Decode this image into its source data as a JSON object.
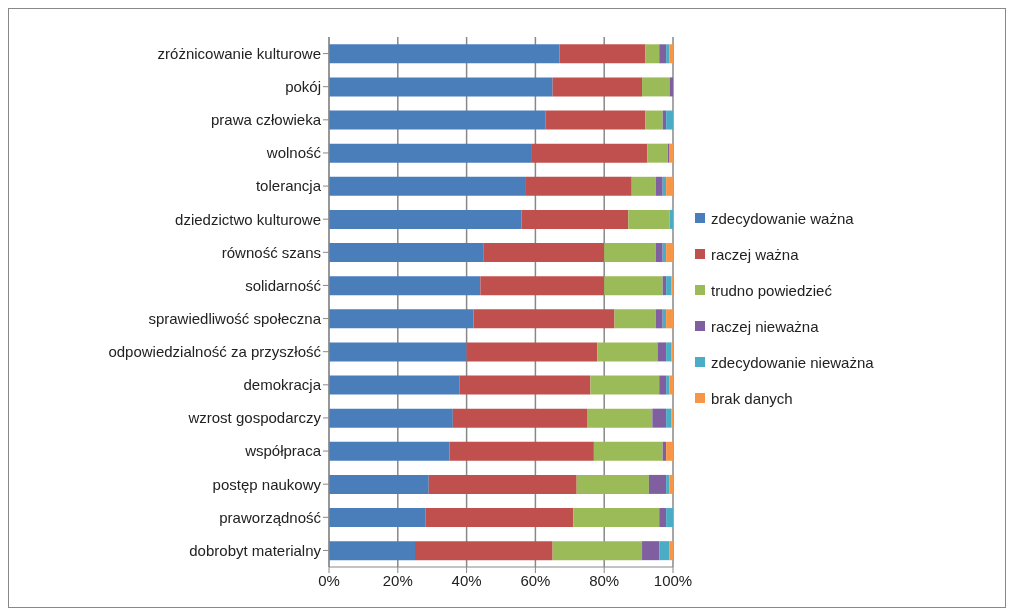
{
  "chart_data": {
    "type": "bar",
    "orientation": "horizontal",
    "stacked": true,
    "categories": [
      "zróżnicowanie kulturowe",
      "pokój",
      "prawa człowieka",
      "wolność",
      "tolerancja",
      "dziedzictwo kulturowe",
      "równość szans",
      "solidarność",
      "sprawiedliwość społeczna",
      "odpowiedzialność za przyszłość",
      "demokracja",
      "wzrost gospodarczy",
      "współpraca",
      "postęp naukowy",
      "praworządność",
      "dobrobyt materialny"
    ],
    "series": [
      {
        "name": "zdecydowanie ważna",
        "color": "#4a7ebb",
        "values": [
          67,
          65,
          63,
          59,
          57,
          56,
          45,
          44,
          42,
          40,
          38,
          36,
          35,
          29,
          28,
          25
        ]
      },
      {
        "name": "raczej ważna",
        "color": "#c0504d",
        "values": [
          25,
          26,
          29,
          33.5,
          31,
          31,
          35,
          36,
          41,
          38,
          38,
          39,
          42,
          43,
          43,
          40
        ]
      },
      {
        "name": "trudno powiedzieć",
        "color": "#9bbb59",
        "values": [
          4,
          8,
          5,
          6,
          7,
          12,
          15,
          17,
          12,
          17.5,
          20,
          19,
          20,
          21,
          25,
          26
        ]
      },
      {
        "name": "raczej nieważna",
        "color": "#7f5fa0",
        "values": [
          2,
          1,
          1,
          0.5,
          2,
          0,
          2,
          1,
          2,
          2.5,
          2,
          4,
          1,
          5,
          2,
          5
        ]
      },
      {
        "name": "zdecydowanie nieważna",
        "color": "#4bacc6",
        "values": [
          1,
          0,
          2,
          0,
          1,
          1,
          1,
          1.5,
          1,
          1.5,
          1,
          1.5,
          0,
          1,
          2,
          3
        ]
      },
      {
        "name": "brak danych",
        "color": "#f79646",
        "values": [
          1,
          0,
          0,
          1,
          2,
          0,
          2,
          0.5,
          2,
          0.5,
          1,
          0.5,
          2,
          1,
          0,
          1
        ]
      }
    ],
    "xlim": [
      0,
      100
    ],
    "xticks": [
      {
        "value": 0,
        "label": "0%"
      },
      {
        "value": 20,
        "label": "20%"
      },
      {
        "value": 40,
        "label": "40%"
      },
      {
        "value": 60,
        "label": "60%"
      },
      {
        "value": 80,
        "label": "80%"
      },
      {
        "value": 100,
        "label": "100%"
      }
    ],
    "grid": "x",
    "legend": "right"
  }
}
